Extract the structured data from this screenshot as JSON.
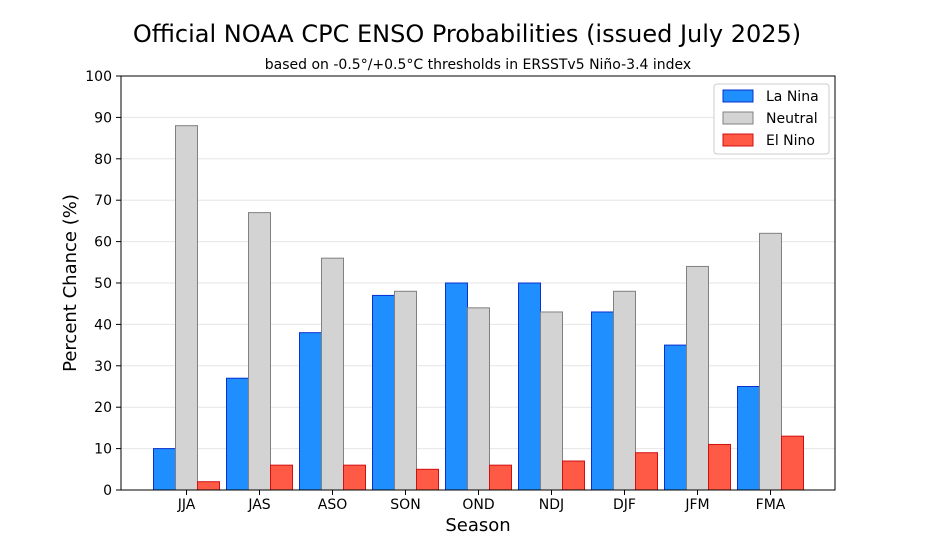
{
  "chart_data": {
    "type": "bar",
    "title": "Official NOAA CPC ENSO Probabilities (issued July 2025)",
    "subtitle": "based on -0.5°/+0.5°C thresholds in ERSSTv5 Niño-3.4 index",
    "xlabel": "Season",
    "ylabel": "Percent Chance (%)",
    "ylim": [
      0,
      100
    ],
    "yticks": [
      "0",
      "10",
      "20",
      "30",
      "40",
      "50",
      "60",
      "70",
      "80",
      "90",
      "100"
    ],
    "grid": "horizontal",
    "legend_position": "top-right",
    "categories": [
      "JJA",
      "JAS",
      "ASO",
      "SON",
      "OND",
      "NDJ",
      "DJF",
      "JFM",
      "FMA"
    ],
    "series": [
      {
        "name": "La Nina",
        "color": "#1f8fff",
        "edge": "#0b2fd0",
        "values": [
          10,
          27,
          38,
          47,
          50,
          50,
          43,
          35,
          25
        ]
      },
      {
        "name": "Neutral",
        "color": "#d3d3d3",
        "edge": "#808080",
        "values": [
          88,
          67,
          56,
          48,
          44,
          43,
          48,
          54,
          62
        ]
      },
      {
        "name": "El Nino",
        "color": "#ff5a45",
        "edge": "#d01010",
        "values": [
          2,
          6,
          6,
          5,
          6,
          7,
          9,
          11,
          13
        ]
      }
    ]
  }
}
